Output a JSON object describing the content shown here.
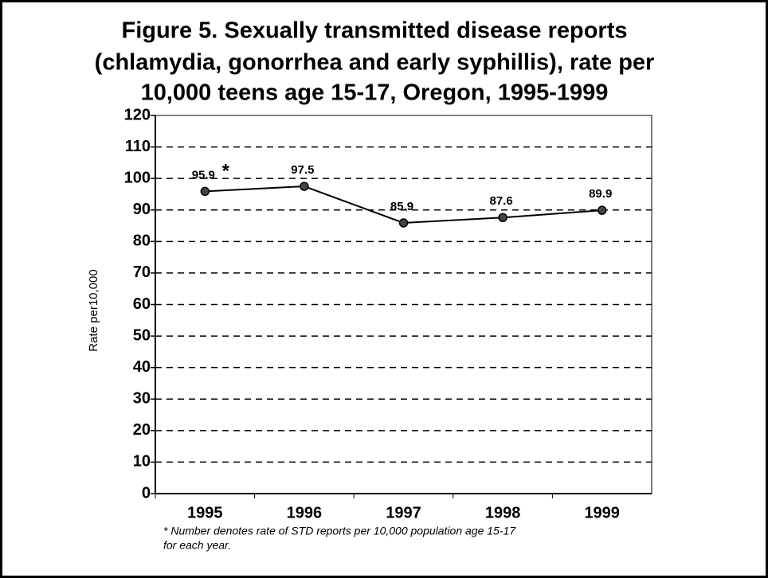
{
  "chart_data": {
    "type": "line",
    "title": [
      "Figure 5. Sexually transmitted disease reports",
      "(chlamydia, gonorrhea and early syphillis), rate per",
      "10,000 teens age 15-17, Oregon, 1995-1999"
    ],
    "y_label": "Rate per10,000",
    "categories": [
      "1995",
      "1996",
      "1997",
      "1998",
      "1999"
    ],
    "series": [
      {
        "name": "Rate",
        "color": "#000000",
        "values": [
          95.9,
          97.5,
          85.9,
          87.6,
          89.9
        ]
      }
    ],
    "ylim": [
      0,
      120
    ],
    "yticks": [
      0,
      10,
      20,
      30,
      40,
      50,
      60,
      70,
      80,
      90,
      100,
      110,
      120
    ],
    "grid": true,
    "annotation": "*",
    "footnote": [
      "* Number denotes rate of STD reports per 10,000 population age 15-17",
      "for each year."
    ]
  }
}
